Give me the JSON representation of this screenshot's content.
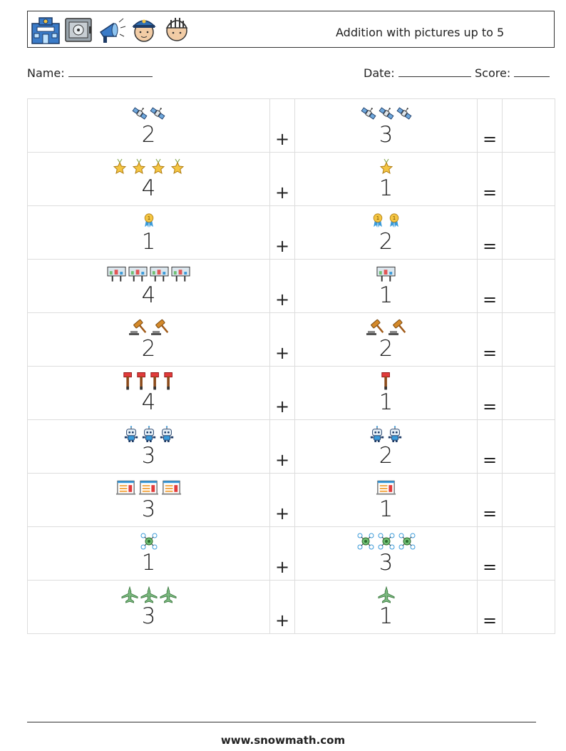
{
  "title": "Addition with pictures up to 5",
  "header_icons": [
    "police-station-icon",
    "safe-icon",
    "megaphone-icon",
    "police-officer-icon",
    "prisoner-icon"
  ],
  "labels": {
    "name": "Name:",
    "date": "Date:",
    "score": "Score:"
  },
  "operators": {
    "plus": "+",
    "equals": "="
  },
  "rows": [
    {
      "left": {
        "count": 2,
        "icon": "satellite"
      },
      "right": {
        "count": 3,
        "icon": "satellite"
      }
    },
    {
      "left": {
        "count": 4,
        "icon": "star-medal"
      },
      "right": {
        "count": 1,
        "icon": "star-medal"
      }
    },
    {
      "left": {
        "count": 1,
        "icon": "award-badge"
      },
      "right": {
        "count": 2,
        "icon": "award-badge"
      }
    },
    {
      "left": {
        "count": 4,
        "icon": "billboard"
      },
      "right": {
        "count": 1,
        "icon": "billboard"
      }
    },
    {
      "left": {
        "count": 2,
        "icon": "gavel"
      },
      "right": {
        "count": 2,
        "icon": "gavel"
      }
    },
    {
      "left": {
        "count": 4,
        "icon": "fire-axe"
      },
      "right": {
        "count": 1,
        "icon": "fire-axe"
      }
    },
    {
      "left": {
        "count": 3,
        "icon": "robot"
      },
      "right": {
        "count": 2,
        "icon": "robot"
      }
    },
    {
      "left": {
        "count": 3,
        "icon": "document"
      },
      "right": {
        "count": 1,
        "icon": "document"
      }
    },
    {
      "left": {
        "count": 1,
        "icon": "drone"
      },
      "right": {
        "count": 3,
        "icon": "drone"
      }
    },
    {
      "left": {
        "count": 3,
        "icon": "jet-plane"
      },
      "right": {
        "count": 1,
        "icon": "jet-plane"
      }
    }
  ],
  "footer": "www.snowmath.com"
}
